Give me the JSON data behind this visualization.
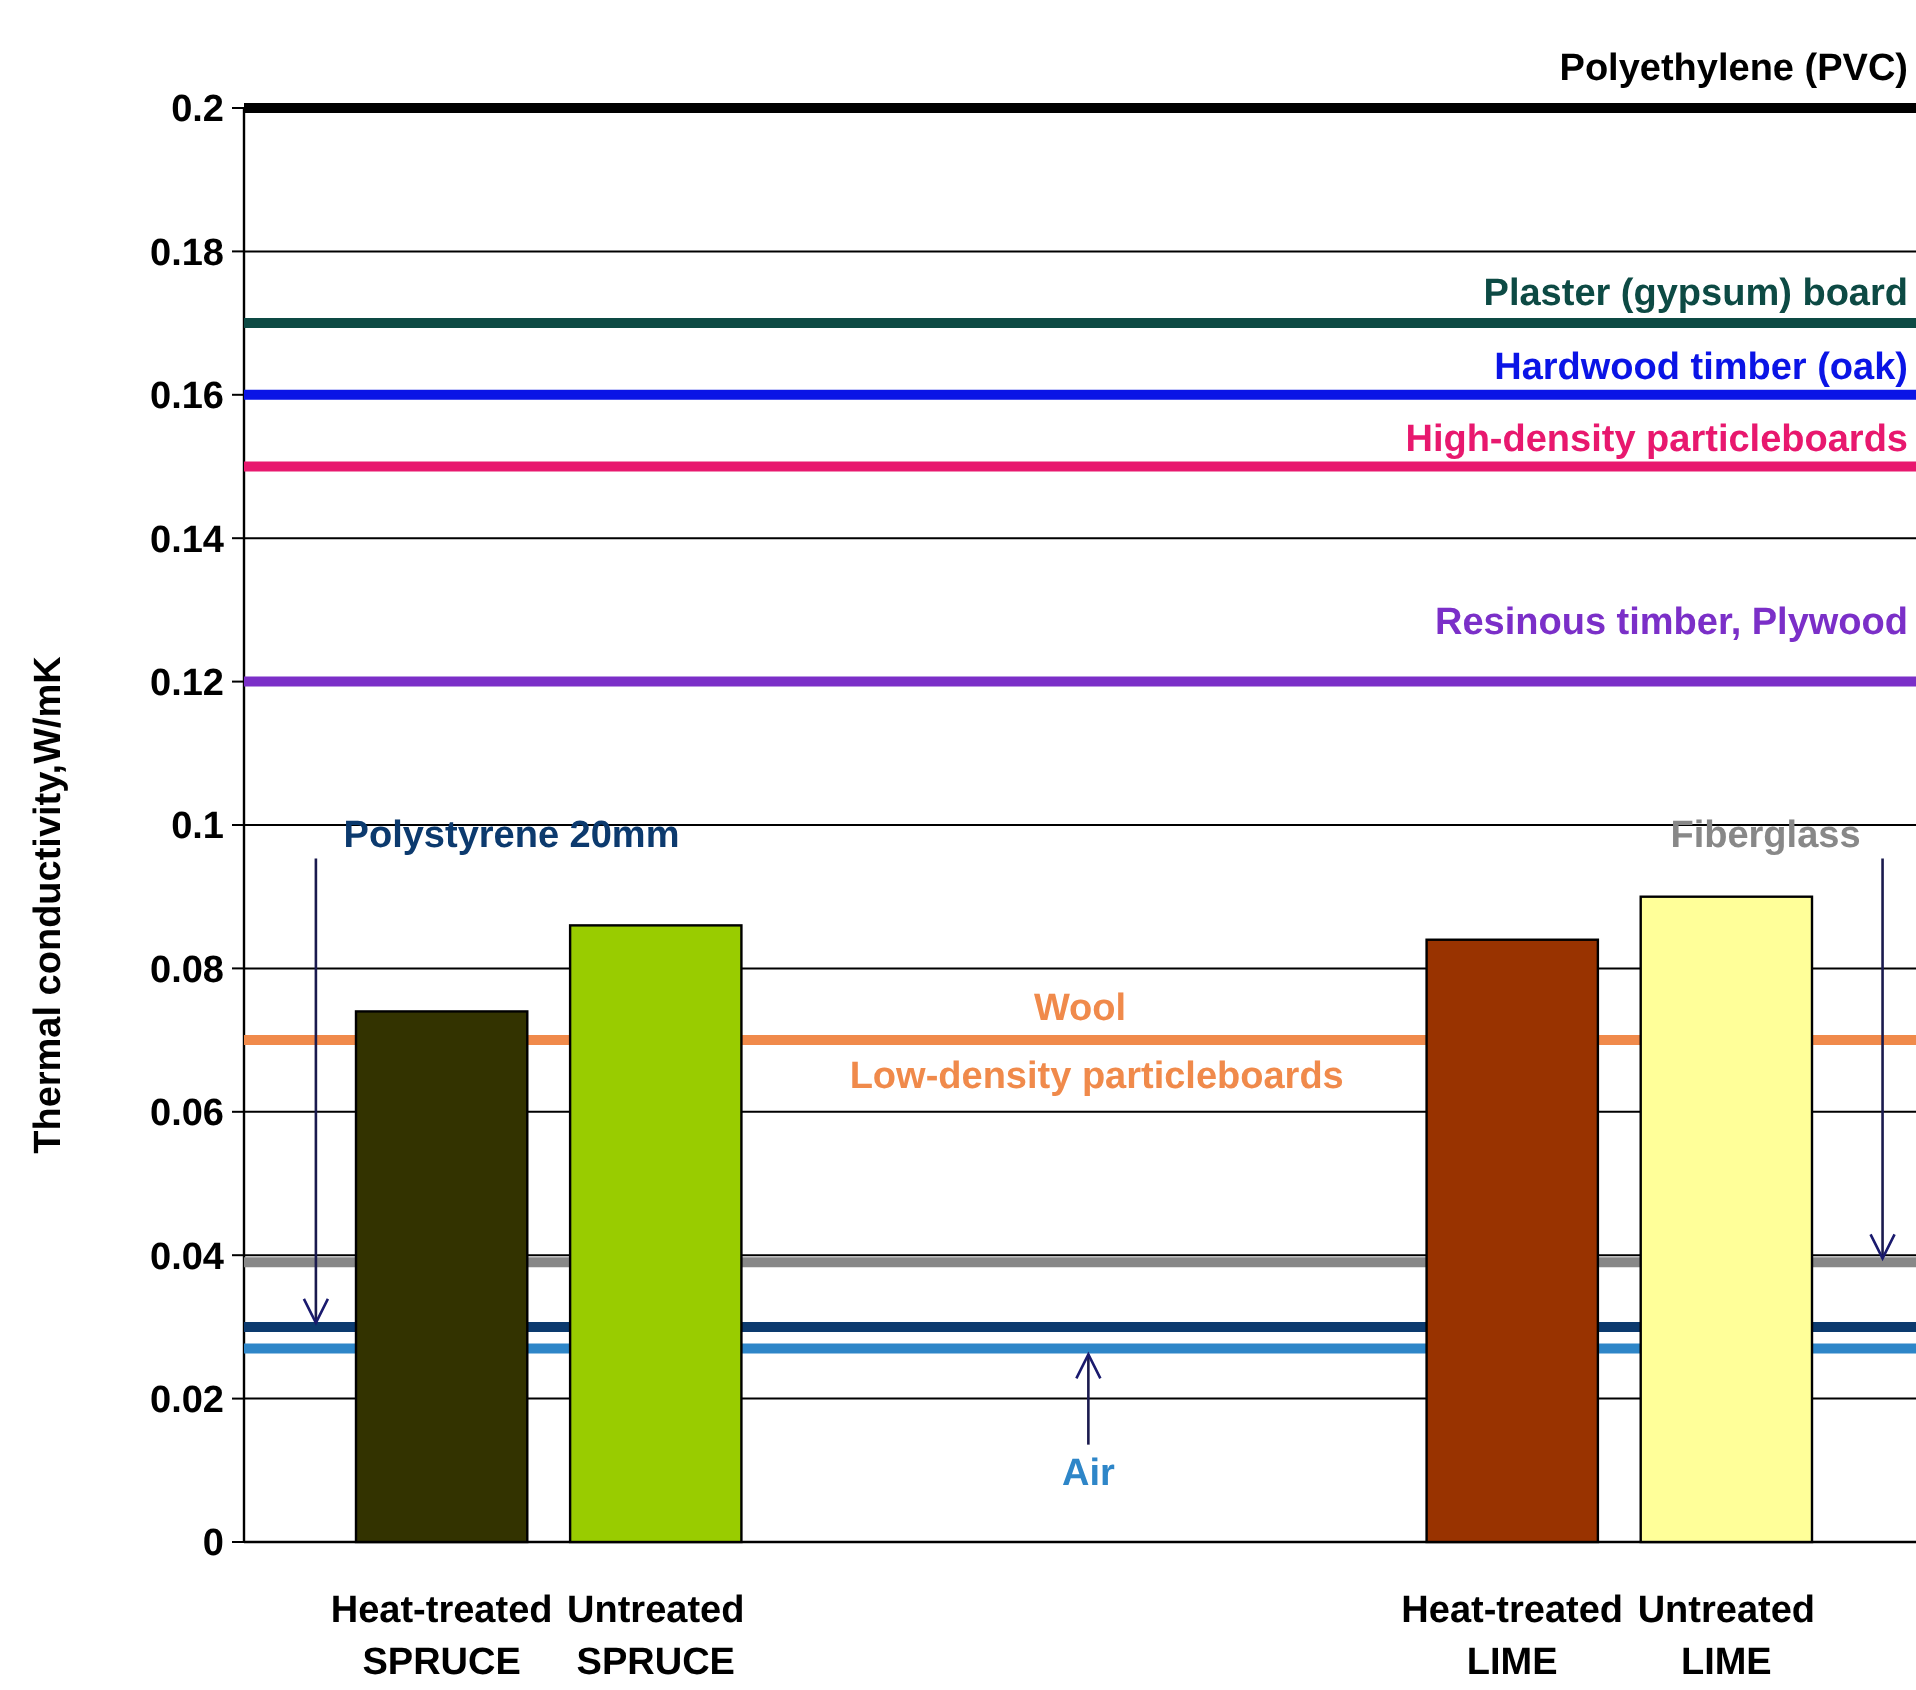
{
  "chart_data": {
    "type": "bar",
    "ylabel": "Thermal conductivity,W/mK",
    "categories": [
      "Heat-treated SPRUCE",
      "Untreated SPRUCE",
      null,
      null,
      null,
      "Heat-treated LIME",
      "Untreated LIME"
    ],
    "values": [
      0.074,
      0.086,
      null,
      null,
      null,
      0.084,
      0.09
    ],
    "colors": [
      "#333300",
      "#99cc00",
      null,
      null,
      null,
      "#993300",
      "#ffff99"
    ],
    "ylim": [
      0,
      0.2
    ],
    "yticks": [
      0,
      0.02,
      0.04,
      0.06,
      0.08,
      0.1,
      0.12,
      0.14,
      0.16,
      0.18,
      0.2
    ],
    "grid": "y",
    "annotations": [
      {
        "text": "Low-density particleboards",
        "y": 0.07
      }
    ],
    "ref_lines": [
      {
        "axis": "y",
        "value": 0.2,
        "label": "Polyethylene (PVC)",
        "color": "#000000"
      },
      {
        "axis": "y",
        "value": 0.17,
        "label": "Plaster (gypsum) board",
        "color": "#0d4a44"
      },
      {
        "axis": "y",
        "value": 0.16,
        "label": "Hardwood timber (oak)",
        "color": "#0a14e6"
      },
      {
        "axis": "y",
        "value": 0.15,
        "label": "High-density particleboards",
        "color": "#e8186e"
      },
      {
        "axis": "y",
        "value": 0.12,
        "label": "Resinous timber, Plywood",
        "color": "#7b2fc8"
      },
      {
        "axis": "y",
        "value": 0.07,
        "label": "Wool",
        "color": "#f08a4b"
      },
      {
        "axis": "y",
        "value": 0.039,
        "label": "Fiberglass",
        "color": "#888888"
      },
      {
        "axis": "y",
        "value": 0.03,
        "label": "Polystyrene 20mm",
        "color": "#0c3a6e"
      },
      {
        "axis": "y",
        "value": 0.027,
        "label": "Air",
        "color": "#2e86c8"
      }
    ]
  }
}
